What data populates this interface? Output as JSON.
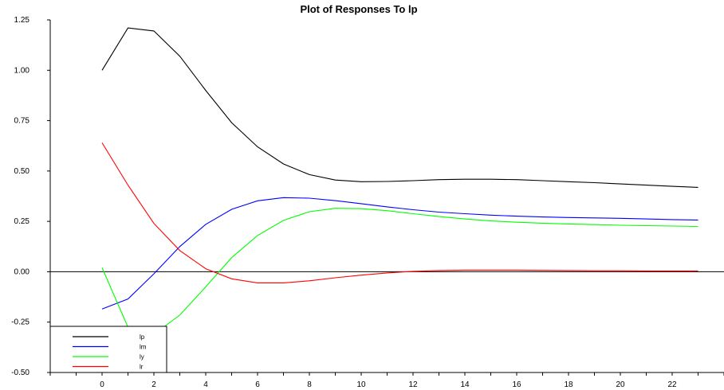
{
  "chart_data": {
    "type": "line",
    "title": "Plot of Responses To lp",
    "xlabel": "",
    "ylabel": "",
    "xlim": [
      -2,
      24
    ],
    "ylim": [
      -0.5,
      1.25
    ],
    "x": [
      0,
      1,
      2,
      3,
      4,
      5,
      6,
      7,
      8,
      9,
      10,
      11,
      12,
      13,
      14,
      15,
      16,
      17,
      18,
      19,
      20,
      21,
      22,
      23
    ],
    "x_ticks": [
      0,
      2,
      4,
      6,
      8,
      10,
      12,
      14,
      16,
      18,
      20,
      22
    ],
    "x_tick_labels": [
      "0",
      "2",
      "4",
      "6",
      "8",
      "10",
      "12",
      "14",
      "16",
      "18",
      "20",
      "22"
    ],
    "y_ticks": [
      -0.5,
      -0.25,
      0,
      0.25,
      0.5,
      0.75,
      1.0,
      1.25
    ],
    "y_tick_labels": [
      "-0.50",
      "-0.25",
      "0.00",
      "0.25",
      "0.50",
      "0.75",
      "1.00",
      "1.25"
    ],
    "zero_line": true,
    "grid": false,
    "legend_position": "bottom-left",
    "series": [
      {
        "name": "lp",
        "color": "#000000",
        "values": [
          1.0,
          1.21,
          1.195,
          1.07,
          0.9,
          0.74,
          0.62,
          0.535,
          0.482,
          0.455,
          0.447,
          0.448,
          0.452,
          0.457,
          0.459,
          0.459,
          0.457,
          0.452,
          0.447,
          0.442,
          0.436,
          0.43,
          0.424,
          0.419
        ]
      },
      {
        "name": "lm",
        "color": "#0000ff",
        "values": [
          -0.185,
          -0.135,
          -0.01,
          0.125,
          0.235,
          0.31,
          0.352,
          0.368,
          0.365,
          0.353,
          0.338,
          0.322,
          0.308,
          0.296,
          0.288,
          0.281,
          0.276,
          0.272,
          0.269,
          0.267,
          0.265,
          0.262,
          0.259,
          0.257
        ]
      },
      {
        "name": "ly",
        "color": "#00ff00",
        "values": [
          0.02,
          -0.275,
          -0.31,
          -0.215,
          -0.075,
          0.07,
          0.18,
          0.255,
          0.298,
          0.315,
          0.313,
          0.303,
          0.288,
          0.274,
          0.262,
          0.252,
          0.246,
          0.241,
          0.237,
          0.234,
          0.231,
          0.229,
          0.227,
          0.225
        ]
      },
      {
        "name": "lr",
        "color": "#ff0000",
        "values": [
          0.64,
          0.43,
          0.24,
          0.105,
          0.015,
          -0.035,
          -0.055,
          -0.055,
          -0.045,
          -0.03,
          -0.017,
          -0.006,
          0.002,
          0.006,
          0.008,
          0.008,
          0.008,
          0.007,
          0.006,
          0.005,
          0.005,
          0.004,
          0.004,
          0.004
        ]
      }
    ]
  }
}
